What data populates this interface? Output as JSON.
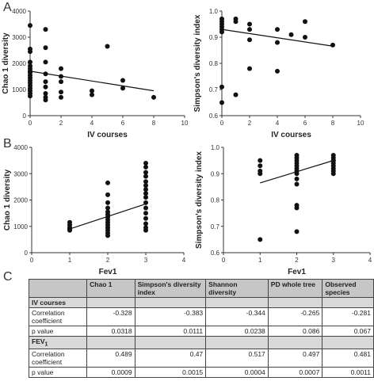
{
  "panel_labels": [
    "A",
    "B",
    "C"
  ],
  "chart_data": [
    {
      "id": "A1",
      "type": "scatter",
      "xlabel": "IV courses",
      "ylabel": "Chao 1 diversity",
      "xlim": [
        0,
        10
      ],
      "ylim": [
        0,
        4000
      ],
      "xticks": [
        0,
        2,
        4,
        6,
        8,
        10
      ],
      "yticks": [
        0,
        1000,
        2000,
        3000,
        4000
      ],
      "x": [
        0,
        0,
        0,
        0,
        0,
        0,
        0,
        0,
        0,
        0,
        0,
        0,
        0,
        0,
        0,
        0,
        0,
        1,
        1,
        1,
        1,
        1,
        1,
        1,
        1,
        1,
        2,
        2,
        2,
        2,
        2,
        4,
        4,
        5,
        6,
        6,
        8
      ],
      "y": [
        3450,
        2550,
        2450,
        2050,
        1900,
        1700,
        1650,
        1550,
        1450,
        1350,
        1250,
        1150,
        1050,
        950,
        850,
        750,
        1800,
        3300,
        2600,
        2050,
        1600,
        1300,
        1100,
        850,
        700,
        600,
        1800,
        1500,
        1300,
        900,
        700,
        950,
        800,
        2650,
        1350,
        1050,
        700
      ],
      "trend": [
        [
          0,
          1700
        ],
        [
          8,
          950
        ]
      ]
    },
    {
      "id": "A2",
      "type": "scatter",
      "xlabel": "IV courses",
      "ylabel": "Simpson's diversity index",
      "xlim": [
        0,
        10
      ],
      "ylim": [
        0.6,
        1.0
      ],
      "xticks": [
        0,
        2,
        4,
        6,
        8,
        10
      ],
      "yticks": [
        0.6,
        0.7,
        0.8,
        0.9,
        1.0
      ],
      "x": [
        0,
        0,
        0,
        0,
        0,
        0,
        0,
        0,
        1,
        1,
        1,
        2,
        2,
        2,
        2,
        4,
        4,
        4,
        5,
        6,
        6,
        8
      ],
      "y": [
        0.97,
        0.96,
        0.95,
        0.94,
        0.93,
        0.92,
        0.71,
        0.65,
        0.97,
        0.96,
        0.68,
        0.95,
        0.93,
        0.89,
        0.78,
        0.93,
        0.88,
        0.77,
        0.91,
        0.96,
        0.9,
        0.87
      ],
      "trend": [
        [
          0,
          0.93
        ],
        [
          8,
          0.866
        ]
      ]
    },
    {
      "id": "B1",
      "type": "scatter",
      "xlabel": "Fev1",
      "ylabel": "Chao 1 diversity",
      "xlim": [
        0,
        4
      ],
      "ylim": [
        0,
        4000
      ],
      "xticks": [
        0,
        1,
        2,
        3,
        4
      ],
      "yticks": [
        0,
        1000,
        2000,
        3000,
        4000
      ],
      "x": [
        1,
        1,
        1,
        1,
        1,
        2,
        2,
        2,
        2,
        2,
        2,
        2,
        2,
        2,
        2,
        2,
        2,
        2,
        2,
        3,
        3,
        3,
        3,
        3,
        3,
        3,
        3,
        3,
        3,
        3,
        3,
        3,
        3,
        3,
        3
      ],
      "y": [
        1150,
        1050,
        950,
        900,
        850,
        2650,
        2200,
        1900,
        1700,
        1550,
        1450,
        1350,
        1250,
        1150,
        1050,
        950,
        850,
        750,
        650,
        3400,
        3250,
        3050,
        2900,
        2700,
        2550,
        2400,
        2250,
        2100,
        1900,
        1700,
        1500,
        1300,
        1100,
        950,
        850
      ],
      "trend": [
        [
          1,
          900
        ],
        [
          3,
          1850
        ]
      ]
    },
    {
      "id": "B2",
      "type": "scatter",
      "xlabel": "Fev1",
      "ylabel": "Simpson's diversity index",
      "xlim": [
        0,
        4
      ],
      "ylim": [
        0.6,
        1.0
      ],
      "xticks": [
        0,
        1,
        2,
        3,
        4
      ],
      "yticks": [
        0.6,
        0.7,
        0.8,
        0.9,
        1.0
      ],
      "x": [
        1,
        1,
        1,
        1,
        1,
        2,
        2,
        2,
        2,
        2,
        2,
        2,
        2,
        2,
        2,
        2,
        2,
        2,
        3,
        3,
        3,
        3,
        3,
        3,
        3,
        3,
        3
      ],
      "y": [
        0.95,
        0.93,
        0.91,
        0.9,
        0.65,
        0.97,
        0.96,
        0.95,
        0.94,
        0.93,
        0.92,
        0.91,
        0.9,
        0.88,
        0.86,
        0.78,
        0.77,
        0.68,
        0.97,
        0.96,
        0.95,
        0.95,
        0.94,
        0.93,
        0.92,
        0.91,
        0.9
      ],
      "trend": [
        [
          1,
          0.865
        ],
        [
          3,
          0.95
        ]
      ]
    },
    {
      "id": "C",
      "type": "table",
      "columns": [
        "",
        "Chao 1",
        "Simpson's diversity index",
        "Shannon diversity",
        "PD whole tree",
        "Observed species"
      ],
      "sections": [
        {
          "title": "IV courses",
          "rows": [
            {
              "label": "Correlation coefficient",
              "values": [
                "-0.328",
                "-0.383",
                "-0.344",
                "-0.265",
                "-0.281"
              ]
            },
            {
              "label": "p value",
              "values": [
                "0.0318",
                "0.0111",
                "0.0238",
                "0.086",
                "0.067"
              ]
            }
          ]
        },
        {
          "title": "FEV",
          "title_sub": "1",
          "rows": [
            {
              "label": "Correlation coefficient",
              "values": [
                "0.489",
                "0.47",
                "0.517",
                "0.497",
                "0.481"
              ]
            },
            {
              "label": "p value",
              "values": [
                "0.0009",
                "0.0015",
                "0.0004",
                "0.0007",
                "0.0011"
              ]
            }
          ]
        }
      ]
    }
  ]
}
